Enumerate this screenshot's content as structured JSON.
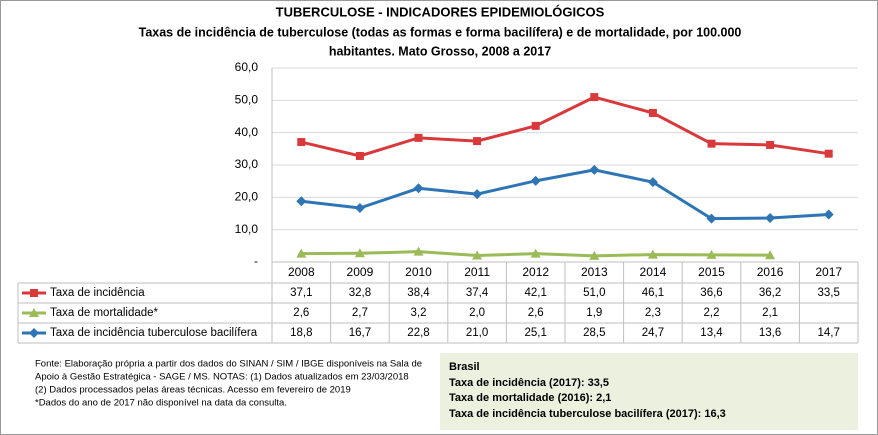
{
  "chart_data": {
    "type": "line",
    "title": "TUBERCULOSE - INDICADORES EPIDEMIOLÓGICOS",
    "subtitle": [
      "Taxas de incidência de tuberculose (todas as formas e forma bacilífera) e de mortalidade,  por 100.000",
      "habitantes. Mato Grosso, 2008 a 2017"
    ],
    "categories": [
      "2008",
      "2009",
      "2010",
      "2011",
      "2012",
      "2013",
      "2014",
      "2015",
      "2016",
      "2017"
    ],
    "series": [
      {
        "name": "Taxa de incidência",
        "color": "#d9393b",
        "marker": "square",
        "values": [
          37.1,
          32.8,
          38.4,
          37.4,
          42.1,
          51.0,
          46.1,
          36.6,
          36.2,
          33.5
        ],
        "value_labels": [
          "37,1",
          "32,8",
          "38,4",
          "37,4",
          "42,1",
          "51,0",
          "46,1",
          "36,6",
          "36,2",
          "33,5"
        ]
      },
      {
        "name": "Taxa de mortalidade*",
        "color": "#9bbb59",
        "marker": "triangle",
        "values": [
          2.6,
          2.7,
          3.2,
          2.0,
          2.6,
          1.9,
          2.3,
          2.2,
          2.1,
          null
        ],
        "value_labels": [
          "2,6",
          "2,7",
          "3,2",
          "2,0",
          "2,6",
          "1,9",
          "2,3",
          "2,2",
          "2,1",
          null
        ]
      },
      {
        "name": "Taxa de incidência tuberculose bacilífera",
        "color": "#2e75b6",
        "marker": "diamond",
        "values": [
          18.8,
          16.7,
          22.8,
          21.0,
          25.1,
          28.5,
          24.7,
          13.4,
          13.6,
          14.7
        ],
        "value_labels": [
          "18,8",
          "16,7",
          "22,8",
          "21,0",
          "25,1",
          "28,5",
          "24,7",
          "13,4",
          "13,6",
          "14,7"
        ]
      }
    ],
    "ylim": [
      0,
      60
    ],
    "yticks": [
      {
        "value": 0,
        "label": "-"
      },
      {
        "value": 10,
        "label": "10,0"
      },
      {
        "value": 20,
        "label": "20,0"
      },
      {
        "value": 30,
        "label": "30,0"
      },
      {
        "value": 40,
        "label": "40,0"
      },
      {
        "value": 50,
        "label": "50,0"
      },
      {
        "value": 60,
        "label": "60,0"
      }
    ],
    "grid": true,
    "notes": [
      "Fonte: Elaboração própria a partir dos dados do SINAN / SIM / IBGE  disponíveis na Sala de",
      "Apoio  à Gestão Estratégica - SAGE / MS. NOTAS: (1) Dados atualizados em 23/03/2018",
      "(2) Dados processados pelas áreas técnicas. Acesso em fevereiro de 2019",
      "*Dados do ano de 2017 não disponível na data da consulta."
    ],
    "summary": {
      "title": "Brasil",
      "lines": [
        "Taxa de incidência  (2017): 33,5",
        "Taxa de mortalidade (2016): 2,1",
        "Taxa de incidência  tuberculose bacilífera  (2017): 16,3"
      ]
    }
  }
}
